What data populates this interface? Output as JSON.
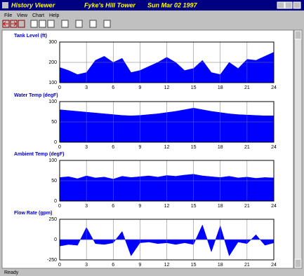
{
  "window": {
    "title": "History Viewer",
    "site": "Fyke's Hill Tower",
    "date": "Sun Mar 02 1997",
    "menu": [
      "File",
      "View",
      "Chart",
      "Help"
    ],
    "status": "Ready"
  },
  "chart_data": [
    {
      "type": "area",
      "title": "Tank Level (ft)",
      "color": "#0000ff",
      "grid": true,
      "x": [
        0,
        1,
        2,
        3,
        4,
        5,
        6,
        7,
        8,
        9,
        10,
        11,
        12,
        13,
        14,
        15,
        16,
        17,
        18,
        19,
        20,
        21,
        22,
        23,
        24
      ],
      "values": [
        175,
        160,
        140,
        150,
        210,
        230,
        200,
        220,
        150,
        160,
        180,
        200,
        225,
        200,
        160,
        170,
        210,
        150,
        140,
        200,
        170,
        215,
        210,
        230,
        250
      ],
      "xlim": [
        0,
        24
      ],
      "xticks": [
        0,
        3,
        6,
        9,
        12,
        15,
        18,
        21,
        24
      ],
      "ylim": [
        100,
        300
      ],
      "yticks": [
        100,
        200,
        300
      ]
    },
    {
      "type": "area",
      "title": "Water Temp (degF)",
      "color": "#0000ff",
      "grid": true,
      "x": [
        0,
        1,
        2,
        3,
        4,
        5,
        6,
        7,
        8,
        9,
        10,
        11,
        12,
        13,
        14,
        15,
        16,
        17,
        18,
        19,
        20,
        21,
        22,
        23,
        24
      ],
      "values": [
        80,
        78,
        76,
        74,
        72,
        70,
        68,
        66,
        65,
        66,
        68,
        70,
        73,
        76,
        80,
        84,
        80,
        76,
        73,
        70,
        68,
        67,
        66,
        65,
        65
      ],
      "xlim": [
        0,
        24
      ],
      "xticks": [
        0,
        3,
        6,
        9,
        12,
        15,
        18,
        21,
        24
      ],
      "ylim": [
        0,
        100
      ],
      "yticks": [
        0,
        50,
        100
      ]
    },
    {
      "type": "area",
      "title": "Ambient Temp (degF)",
      "color": "#0000ff",
      "grid": true,
      "x": [
        0,
        1,
        2,
        3,
        4,
        5,
        6,
        7,
        8,
        9,
        10,
        11,
        12,
        13,
        14,
        15,
        16,
        17,
        18,
        19,
        20,
        21,
        22,
        23,
        24
      ],
      "values": [
        58,
        60,
        55,
        62,
        57,
        59,
        54,
        61,
        58,
        60,
        62,
        59,
        63,
        61,
        64,
        66,
        62,
        60,
        58,
        61,
        57,
        59,
        56,
        58,
        57
      ],
      "xlim": [
        0,
        24
      ],
      "xticks": [
        0,
        3,
        6,
        9,
        12,
        15,
        18,
        21,
        24
      ],
      "ylim": [
        0,
        100
      ],
      "yticks": [
        0,
        50,
        100
      ]
    },
    {
      "type": "area",
      "title": "Flow Rate (gpm)",
      "color": "#0000ff",
      "grid": true,
      "x": [
        0,
        1,
        2,
        3,
        4,
        5,
        6,
        7,
        8,
        9,
        10,
        11,
        12,
        13,
        14,
        15,
        16,
        17,
        18,
        19,
        20,
        21,
        22,
        23,
        24
      ],
      "values": [
        -80,
        -60,
        -70,
        150,
        -50,
        -60,
        -40,
        100,
        -200,
        -40,
        -30,
        -50,
        -40,
        -60,
        -40,
        -60,
        180,
        -150,
        170,
        -200,
        -30,
        -50,
        60,
        -70,
        -40
      ],
      "xlim": [
        0,
        24
      ],
      "xticks": [
        0,
        3,
        6,
        9,
        12,
        15,
        18,
        21,
        24
      ],
      "ylim": [
        -250,
        250
      ],
      "yticks": [
        -250,
        0,
        250
      ]
    }
  ]
}
